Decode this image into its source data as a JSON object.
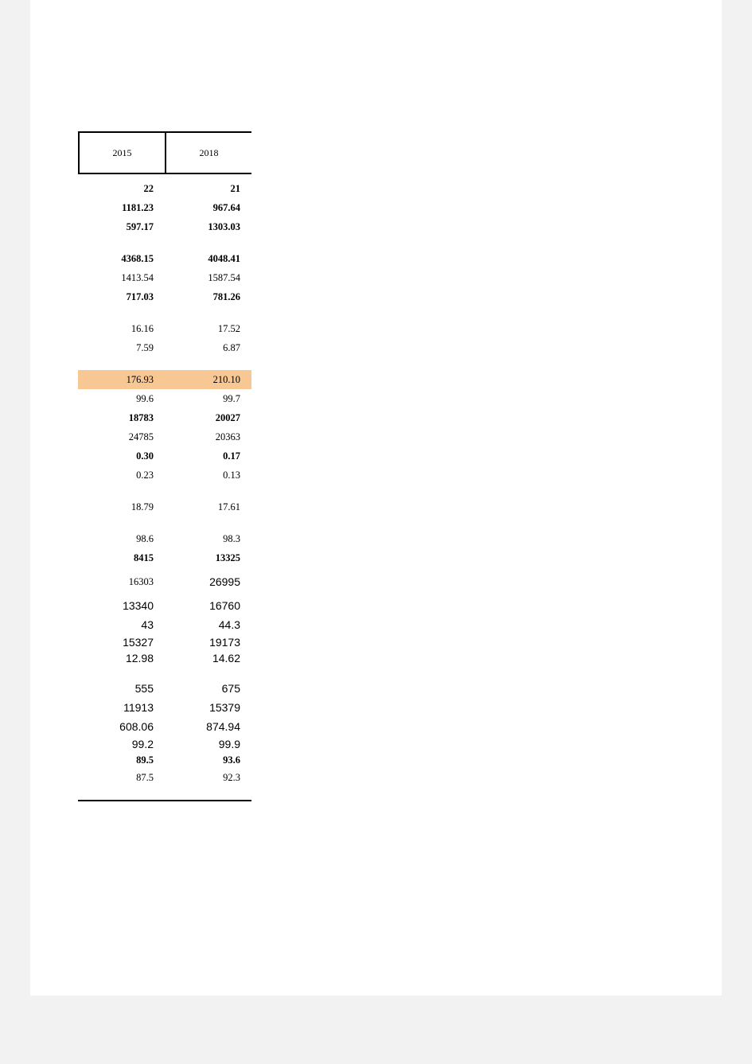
{
  "table": {
    "type": "table",
    "background_color": "#ffffff",
    "page_background": "#f2f2f2",
    "border_color": "#000000",
    "highlight_color": "#f8c894",
    "header_font_size": 12,
    "cell_font_size": 12.5,
    "sans_cell_font_size": 14,
    "columns": [
      "2015",
      "2018"
    ],
    "rows": [
      {
        "kind": "data",
        "bold": true,
        "a": "22",
        "b": "21"
      },
      {
        "kind": "data",
        "bold": true,
        "a": "1181.23",
        "b": "967.64"
      },
      {
        "kind": "data",
        "bold": true,
        "a": "597.17",
        "b": "1303.03"
      },
      {
        "kind": "gap"
      },
      {
        "kind": "data",
        "bold": true,
        "a": "4368.15",
        "b": "4048.41"
      },
      {
        "kind": "data",
        "bold": false,
        "a": "1413.54",
        "b": "1587.54"
      },
      {
        "kind": "data",
        "bold": true,
        "a": "717.03",
        "b": "781.26"
      },
      {
        "kind": "gap"
      },
      {
        "kind": "data",
        "bold": false,
        "a": "16.16",
        "b": "17.52"
      },
      {
        "kind": "data",
        "bold": false,
        "a": "7.59",
        "b": "6.87"
      },
      {
        "kind": "gap"
      },
      {
        "kind": "data",
        "bold": false,
        "highlight": true,
        "a": "176.93",
        "b": "210.10"
      },
      {
        "kind": "data",
        "bold": false,
        "a": "99.6",
        "b": "99.7"
      },
      {
        "kind": "data",
        "bold": true,
        "a": "18783",
        "b": "20027"
      },
      {
        "kind": "data",
        "bold": false,
        "a": "24785",
        "b": "20363"
      },
      {
        "kind": "data",
        "bold": true,
        "a": "0.30",
        "b": "0.17"
      },
      {
        "kind": "data",
        "bold": false,
        "a": "0.23",
        "b": "0.13"
      },
      {
        "kind": "gap"
      },
      {
        "kind": "data",
        "bold": false,
        "a": "18.79",
        "b": "17.61"
      },
      {
        "kind": "gap"
      },
      {
        "kind": "data",
        "bold": false,
        "a": "98.6",
        "b": "98.3"
      },
      {
        "kind": "data",
        "bold": true,
        "a": "8415",
        "b": "13325"
      },
      {
        "kind": "mixed",
        "bold": false,
        "a": "16303",
        "b": "26995",
        "a_sans": false,
        "b_sans": true,
        "tall": true
      },
      {
        "kind": "data",
        "bold": false,
        "sans": true,
        "a": "13340",
        "b": "16760"
      },
      {
        "kind": "data",
        "bold": false,
        "sans": true,
        "a": "43",
        "b": "44.3"
      },
      {
        "kind": "data",
        "bold": false,
        "sans": true,
        "short": true,
        "a": "15327",
        "b": "19173"
      },
      {
        "kind": "data",
        "bold": false,
        "sans": true,
        "short": true,
        "a": "12.98",
        "b": "14.62"
      },
      {
        "kind": "gap"
      },
      {
        "kind": "data",
        "bold": false,
        "sans": true,
        "a": "555",
        "b": "675"
      },
      {
        "kind": "data",
        "bold": false,
        "sans": true,
        "a": "11913",
        "b": "15379"
      },
      {
        "kind": "data",
        "bold": false,
        "sans": true,
        "a": "608.06",
        "b": "874.94"
      },
      {
        "kind": "data",
        "bold": false,
        "sans": true,
        "short": true,
        "a": "99.2",
        "b": "99.9"
      },
      {
        "kind": "data",
        "bold": true,
        "short": true,
        "a": "89.5",
        "b": "93.6"
      },
      {
        "kind": "data",
        "bold": false,
        "a": "87.5",
        "b": "92.3"
      },
      {
        "kind": "gap"
      }
    ]
  }
}
